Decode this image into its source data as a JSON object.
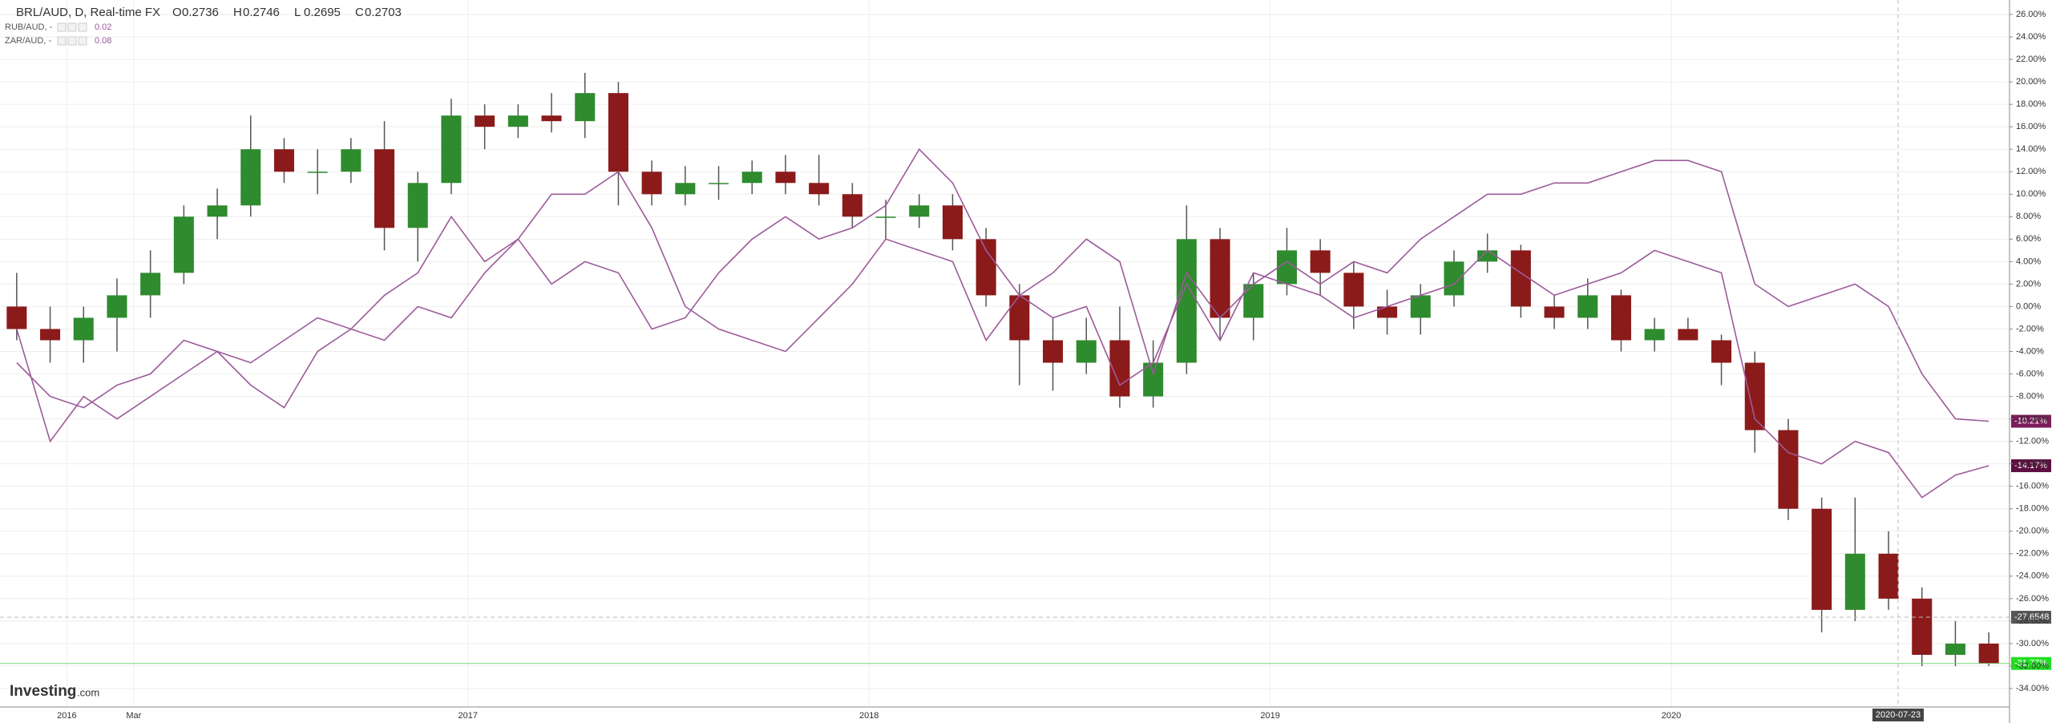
{
  "chart_data": {
    "type": "candlestick",
    "header": {
      "title": "BRL/AUD, D, Real-time FX",
      "ohlc": [
        {
          "label": "O",
          "value": 0.2736
        },
        {
          "label": "H",
          "value": 0.2746
        },
        {
          "label": "L",
          "value": 0.2695
        },
        {
          "label": "C",
          "value": 0.2703
        }
      ]
    },
    "categories": [
      null,
      null,
      "2016",
      null,
      "Mar",
      null,
      null,
      null,
      null,
      null,
      null,
      null,
      null,
      null,
      "2017",
      null,
      null,
      null,
      null,
      null,
      null,
      null,
      null,
      null,
      null,
      null,
      "2018",
      null,
      null,
      null,
      null,
      null,
      null,
      null,
      null,
      null,
      null,
      null,
      "2019",
      null,
      null,
      null,
      null,
      null,
      null,
      null,
      null,
      null,
      null,
      null,
      "2020",
      null,
      null,
      null,
      null,
      null,
      null,
      null,
      null,
      null
    ],
    "series": [
      {
        "name": "BRL/AUD, D, Real-time FX",
        "type": "candlestick",
        "up_color": "#2e8b2e",
        "down_color": "#8b1a1a",
        "wick_color": "#555555",
        "open": [
          0,
          -2,
          -3,
          -1,
          1,
          3,
          8,
          9,
          14,
          12,
          12,
          14,
          7,
          11,
          17,
          16,
          17,
          16.5,
          19,
          12,
          10,
          11,
          11,
          12,
          11,
          10,
          8,
          8,
          9,
          6,
          1,
          -3,
          -5,
          -3,
          -8,
          -5,
          6,
          -1,
          2,
          5,
          3,
          0,
          -1,
          1,
          4,
          5,
          0,
          -1,
          1,
          -3,
          -2,
          -3,
          -5,
          -11,
          -18,
          -27,
          -22,
          -26,
          -31,
          -30
        ],
        "high": [
          3,
          0,
          0,
          2.5,
          5,
          9,
          10.5,
          17,
          15,
          14,
          15,
          16.5,
          12,
          18.5,
          18,
          18,
          19,
          20.8,
          20,
          13,
          12.5,
          12.5,
          13,
          13.5,
          13.5,
          11,
          9.5,
          10,
          10,
          7,
          2,
          -1,
          -1,
          0,
          -3,
          9,
          7,
          3,
          7,
          6,
          4,
          1.5,
          2,
          5,
          6.5,
          5.5,
          1,
          2.5,
          1.5,
          -1,
          -1,
          -2.5,
          -4,
          -10,
          -17,
          -17,
          -20,
          -25,
          -28,
          -29
        ],
        "low": [
          -3,
          -5,
          -5,
          -4,
          -1,
          2,
          6,
          8,
          11,
          10,
          11,
          5,
          4,
          10,
          14,
          15,
          15.5,
          15,
          9,
          9,
          9,
          9.5,
          10,
          10,
          9,
          7,
          6,
          7,
          5,
          0,
          -7,
          -7.5,
          -6,
          -9,
          -9,
          -6,
          -3,
          -3,
          1,
          1,
          -2,
          -2.5,
          -2.5,
          0,
          3,
          -1,
          -2,
          -2,
          -4,
          -4,
          -3,
          -7,
          -13,
          -19,
          -29,
          -28,
          -27,
          -32,
          -32,
          -32
        ],
        "close": [
          -2,
          -3,
          -1,
          1,
          3,
          8,
          9,
          14,
          12,
          12,
          14,
          7,
          11,
          17,
          16,
          17,
          16.5,
          19,
          12,
          10,
          11,
          11,
          12,
          11,
          10,
          8,
          8,
          9,
          6,
          1,
          -3,
          -5,
          -3,
          -8,
          -5,
          6,
          -1,
          2,
          5,
          3,
          0,
          -1,
          1,
          4,
          5,
          0,
          -1,
          1,
          -3,
          -2,
          -3,
          -5,
          -11,
          -18,
          -27,
          -22,
          -26,
          -31,
          -30,
          -31.77
        ],
        "last_value_label": "-31.77%",
        "last_label_color": "#22dd22"
      },
      {
        "name": "RUB/AUD, -",
        "type": "line",
        "color": "#9c5b9a",
        "legend_value": 0.02,
        "last_value_label": "-10.21%",
        "last_label_color": "#7b1d5a",
        "values": [
          -2,
          -12,
          -8,
          -10,
          -8,
          -6,
          -4,
          -5,
          -3,
          -1,
          -2,
          1,
          3,
          8,
          4,
          6,
          2,
          4,
          3,
          -2,
          -1,
          3,
          6,
          8,
          6,
          7,
          9,
          14,
          11,
          5,
          1,
          3,
          6,
          4,
          -6,
          3,
          -1,
          2,
          4,
          2,
          4,
          3,
          6,
          8,
          10,
          10,
          11,
          11,
          12,
          13,
          13,
          12,
          2,
          0,
          1,
          2,
          0,
          -6,
          -10,
          -10.21
        ]
      },
      {
        "name": "ZAR/AUD, -",
        "type": "line",
        "color": "#9c5b9a",
        "legend_value": 0.08,
        "last_value_label": "-14.17%",
        "last_label_color": "#5e0f42",
        "values": [
          -5,
          -8,
          -9,
          -7,
          -6,
          -3,
          -4,
          -7,
          -9,
          -4,
          -2,
          -3,
          0,
          -1,
          3,
          6,
          10,
          10,
          12,
          7,
          0,
          -2,
          -3,
          -4,
          -1,
          2,
          6,
          5,
          4,
          -3,
          1,
          -1,
          0,
          -7,
          -5,
          2,
          -3,
          3,
          2,
          1,
          -1,
          0,
          1,
          2,
          5,
          3,
          1,
          2,
          3,
          5,
          4,
          3,
          -10,
          -13,
          -14,
          -12,
          -13,
          -17,
          -15,
          -14.17
        ]
      }
    ],
    "ylim": [
      -35,
      27
    ],
    "yticks": [
      {
        "value": 26,
        "label": "26.00%"
      },
      {
        "value": 24,
        "label": "24.00%"
      },
      {
        "value": 22,
        "label": "22.00%"
      },
      {
        "value": 20,
        "label": "20.00%"
      },
      {
        "value": 18,
        "label": "18.00%"
      },
      {
        "value": 16,
        "label": "16.00%"
      },
      {
        "value": 14,
        "label": "14.00%"
      },
      {
        "value": 12,
        "label": "12.00%"
      },
      {
        "value": 10,
        "label": "10.00%"
      },
      {
        "value": 8,
        "label": "8.00%"
      },
      {
        "value": 6,
        "label": "6.00%"
      },
      {
        "value": 4,
        "label": "4.00%"
      },
      {
        "value": 2,
        "label": "2.00%"
      },
      {
        "value": 0,
        "label": "0.00%"
      },
      {
        "value": -2,
        "label": "-2.00%"
      },
      {
        "value": -4,
        "label": "-4.00%"
      },
      {
        "value": -6,
        "label": "-6.00%"
      },
      {
        "value": -8,
        "label": "-8.00%"
      },
      {
        "value": -10,
        "label": "-10.00%"
      },
      {
        "value": -12,
        "label": "-12.00%"
      },
      {
        "value": -14,
        "label": "-14.00%"
      },
      {
        "value": -16,
        "label": "-16.00%"
      },
      {
        "value": -18,
        "label": "-18.00%"
      },
      {
        "value": -20,
        "label": "-20.00%"
      },
      {
        "value": -22,
        "label": "-22.00%"
      },
      {
        "value": -24,
        "label": "-24.00%"
      },
      {
        "value": -26,
        "label": "-26.00%"
      },
      {
        "value": -28,
        "label": "-28.00%"
      },
      {
        "value": -30,
        "label": "-30.00%"
      },
      {
        "value": -32,
        "label": "-32.00%"
      },
      {
        "value": -34,
        "label": "-34.00%"
      }
    ],
    "grid": true,
    "crosshair": {
      "x_label": "2020-07-23",
      "y": -27.6548
    },
    "logo": {
      "brand": "Investing",
      "suffix": ".com"
    }
  }
}
